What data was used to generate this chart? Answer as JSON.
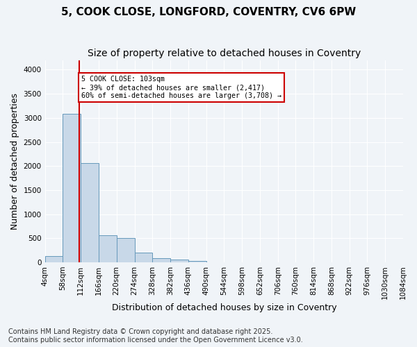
{
  "title_line1": "5, COOK CLOSE, LONGFORD, COVENTRY, CV6 6PW",
  "title_line2": "Size of property relative to detached houses in Coventry",
  "xlabel": "Distribution of detached houses by size in Coventry",
  "ylabel": "Number of detached properties",
  "footnote": "Contains HM Land Registry data © Crown copyright and database right 2025.\nContains public sector information licensed under the Open Government Licence v3.0.",
  "bin_edges": [
    "4sqm",
    "58sqm",
    "112sqm",
    "166sqm",
    "220sqm",
    "274sqm",
    "328sqm",
    "382sqm",
    "436sqm",
    "490sqm",
    "544sqm",
    "598sqm",
    "652sqm",
    "706sqm",
    "760sqm",
    "814sqm",
    "868sqm",
    "922sqm",
    "976sqm",
    "1030sqm",
    "1084sqm"
  ],
  "bar_values": [
    130,
    3080,
    2060,
    560,
    500,
    200,
    80,
    55,
    35,
    0,
    0,
    0,
    0,
    0,
    0,
    0,
    0,
    0,
    0,
    0
  ],
  "bar_color": "#c8d8e8",
  "bar_edgecolor": "#6699bb",
  "property_line_x": 1.92,
  "property_size": 103,
  "annotation_text": "5 COOK CLOSE: 103sqm\n← 39% of detached houses are smaller (2,417)\n60% of semi-detached houses are larger (3,708) →",
  "annotation_box_color": "#ffffff",
  "annotation_box_edgecolor": "#cc0000",
  "vline_color": "#cc0000",
  "ylim": [
    0,
    4200
  ],
  "yticks": [
    0,
    500,
    1000,
    1500,
    2000,
    2500,
    3000,
    3500,
    4000
  ],
  "background_color": "#f0f4f8",
  "plot_bg_color": "#f0f4f8",
  "grid_color": "#ffffff",
  "title_fontsize": 11,
  "subtitle_fontsize": 10,
  "axis_label_fontsize": 9,
  "tick_fontsize": 7.5,
  "footnote_fontsize": 7
}
